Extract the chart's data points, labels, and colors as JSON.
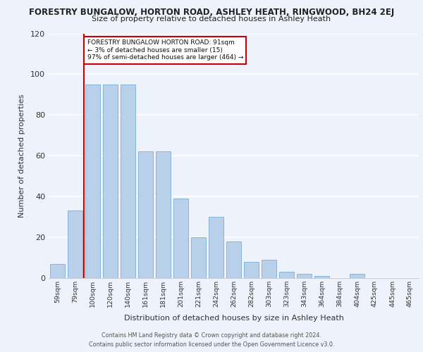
{
  "title": "FORESTRY BUNGALOW, HORTON ROAD, ASHLEY HEATH, RINGWOOD, BH24 2EJ",
  "subtitle": "Size of property relative to detached houses in Ashley Heath",
  "xlabel": "Distribution of detached houses by size in Ashley Heath",
  "ylabel": "Number of detached properties",
  "categories": [
    "59sqm",
    "79sqm",
    "100sqm",
    "120sqm",
    "140sqm",
    "161sqm",
    "181sqm",
    "201sqm",
    "221sqm",
    "242sqm",
    "262sqm",
    "282sqm",
    "303sqm",
    "323sqm",
    "343sqm",
    "364sqm",
    "384sqm",
    "404sqm",
    "425sqm",
    "445sqm",
    "465sqm"
  ],
  "values": [
    7,
    33,
    95,
    95,
    95,
    62,
    62,
    39,
    20,
    30,
    18,
    8,
    9,
    3,
    2,
    1,
    0,
    2,
    0,
    0,
    0
  ],
  "bar_color": "#b8d0ea",
  "bar_edge_color": "#7aadd4",
  "annotation_text_lines": [
    "FORESTRY BUNGALOW HORTON ROAD: 91sqm",
    "← 3% of detached houses are smaller (15)",
    "97% of semi-detached houses are larger (464) →"
  ],
  "annotation_box_edge_color": "#cc0000",
  "vline_color": "#cc0000",
  "vline_x_idx": 1.5,
  "ylim": [
    0,
    120
  ],
  "yticks": [
    0,
    20,
    40,
    60,
    80,
    100,
    120
  ],
  "background_color": "#eef2fa",
  "grid_color": "#ffffff",
  "title_fontsize": 8.5,
  "subtitle_fontsize": 8.0,
  "footer_line1": "Contains HM Land Registry data © Crown copyright and database right 2024.",
  "footer_line2": "Contains public sector information licensed under the Open Government Licence v3.0."
}
